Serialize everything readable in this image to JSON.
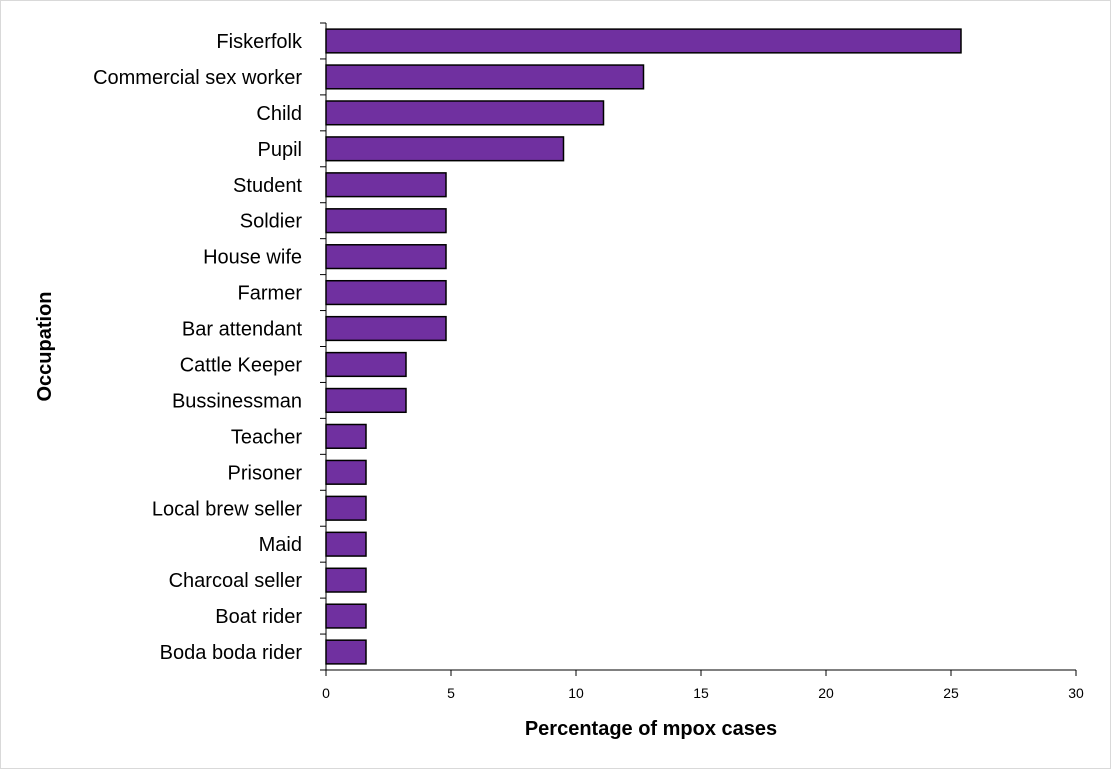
{
  "chart_data": {
    "type": "bar",
    "orientation": "horizontal",
    "categories": [
      "Fiskerfolk",
      "Commercial sex worker",
      "Child",
      "Pupil",
      "Student",
      "Soldier",
      "House wife",
      "Farmer",
      "Bar attendant",
      "Cattle Keeper",
      "Bussinessman",
      "Teacher",
      "Prisoner",
      "Local brew seller",
      "Maid",
      "Charcoal seller",
      "Boat rider",
      "Boda boda rider"
    ],
    "values": [
      25.4,
      12.7,
      11.1,
      9.5,
      4.8,
      4.8,
      4.8,
      4.8,
      4.8,
      3.2,
      3.2,
      1.6,
      1.6,
      1.6,
      1.6,
      1.6,
      1.6,
      1.6
    ],
    "xlabel": "Percentage of mpox cases",
    "ylabel": "Occupation",
    "xlim": [
      0,
      30
    ],
    "xticks": [
      "0",
      "5",
      "10",
      "15",
      "20",
      "25",
      "30"
    ],
    "grid": false,
    "legend": "none",
    "colors": {
      "bar_fill": "#7030a0",
      "bar_stroke": "#000000",
      "axis": "#000000"
    }
  }
}
